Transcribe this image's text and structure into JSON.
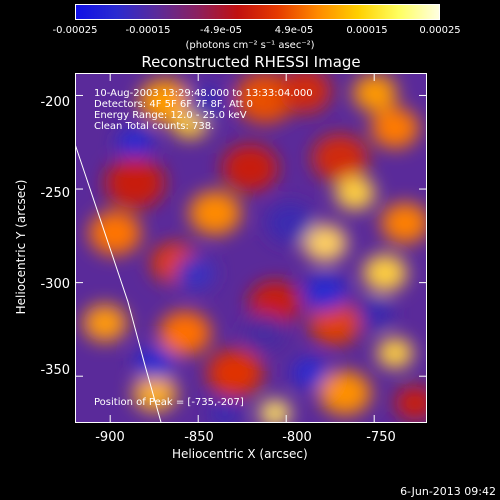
{
  "colorbar": {
    "tick_labels": [
      "-0.00025",
      "-0.00015",
      "-4.9e-05",
      "4.9e-05",
      "0.00015",
      "0.00025"
    ],
    "units": "(photons cm⁻² s⁻¹ asec⁻²)",
    "colors": [
      "#1010e6",
      "#2a2ad0",
      "#5a2a9a",
      "#8a2060",
      "#c01010",
      "#e53a00",
      "#ff8a00",
      "#ffd000",
      "#ffff60",
      "#ffffe0"
    ]
  },
  "chart_data": {
    "type": "heatmap",
    "title": "Reconstructed RHESSI Image",
    "xlabel": "Heliocentric X (arcsec)",
    "ylabel": "Heliocentric Y (arcsec)",
    "xlim": [
      -920,
      -720
    ],
    "ylim": [
      -375,
      -188
    ],
    "xticks": [
      -900,
      -850,
      -800,
      -750
    ],
    "yticks": [
      -200,
      -250,
      -300,
      -350
    ],
    "limb_curve": [
      [
        -920,
        -226
      ],
      [
        -905,
        -268
      ],
      [
        -890,
        -310
      ],
      [
        -880,
        -345
      ],
      [
        -871,
        -375
      ]
    ],
    "annotations": {
      "time_range": "10-Aug-2003 13:29:48.000 to 13:33:04.000",
      "detectors": "Detectors: 4F 5F 6F 7F 8F, Att 0",
      "energy": "Energy Range: 12.0 - 25.0 keV",
      "clean": "Clean     Total counts: 738.",
      "peak": "Position of Peak = [-735,-207]"
    }
  },
  "footer": {
    "date": "6-Jun-2013 09:42"
  }
}
